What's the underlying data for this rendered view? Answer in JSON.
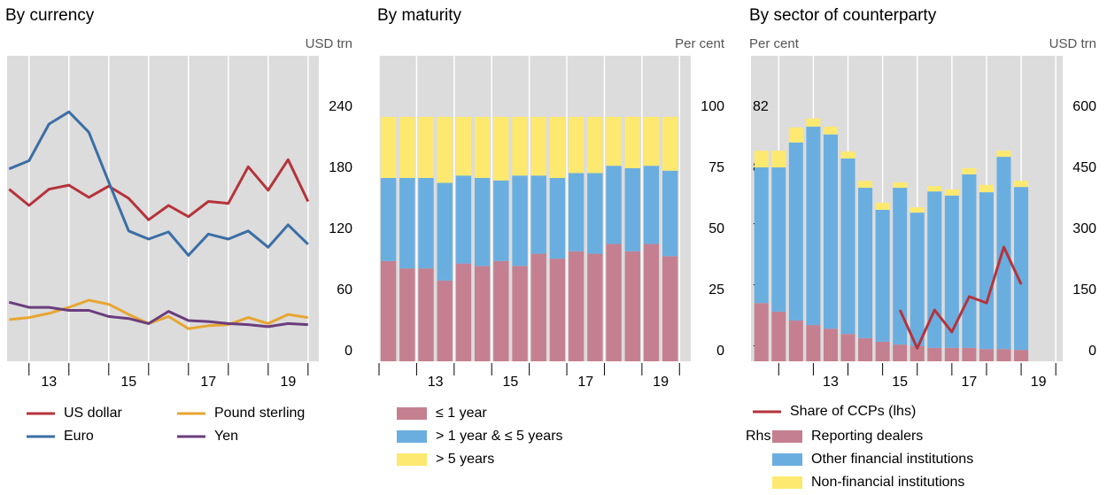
{
  "chart_data": [
    {
      "type": "line",
      "title": "By currency",
      "y_label": "USD trn",
      "yaxis_side": "right",
      "x": [
        2012.5,
        2013.0,
        2013.5,
        2014.0,
        2014.5,
        2015.0,
        2015.5,
        2016.0,
        2016.5,
        2017.0,
        2017.5,
        2018.0,
        2018.5,
        2019.0,
        2019.5,
        2020.0
      ],
      "xlim": [
        2012.45,
        2020.27
      ],
      "xticks": [
        2013,
        2014,
        2015,
        2016,
        2017,
        2018,
        2019,
        2020
      ],
      "xlabels": [
        {
          "value": 2013.5,
          "label": "13"
        },
        {
          "value": 2015.5,
          "label": "15"
        },
        {
          "value": 2017.5,
          "label": "17"
        },
        {
          "value": 2019.5,
          "label": "19"
        }
      ],
      "ylim": [
        0,
        300
      ],
      "yticks": [
        0,
        60,
        120,
        180,
        240
      ],
      "series": [
        {
          "name": "US dollar",
          "color": "#b5333b",
          "values": [
            169,
            153,
            169,
            173,
            161,
            172,
            160,
            139,
            153,
            142,
            157,
            155,
            191,
            168,
            198,
            157
          ]
        },
        {
          "name": "Euro",
          "color": "#3b6ea5",
          "values": [
            189,
            197,
            233,
            245,
            225,
            176,
            128,
            120,
            127,
            104,
            125,
            120,
            128,
            112,
            134,
            115
          ]
        },
        {
          "name": "Pound sterling",
          "color": "#e8a531",
          "values": [
            41,
            43,
            47,
            53,
            60,
            56,
            46,
            37,
            44,
            32,
            35,
            36,
            43,
            37,
            46,
            43
          ]
        },
        {
          "name": "Yen",
          "color": "#6a3d7e",
          "values": [
            58,
            53,
            53,
            50,
            50,
            44,
            42,
            37,
            49,
            40,
            39,
            37,
            36,
            34,
            37,
            36
          ]
        }
      ]
    },
    {
      "type": "bar",
      "stacked": true,
      "title": "By maturity",
      "y_label": "Per cent",
      "yaxis_side": "right",
      "x": [
        2012.25,
        2012.75,
        2013.25,
        2013.75,
        2014.25,
        2014.75,
        2015.25,
        2015.75,
        2016.25,
        2016.75,
        2017.25,
        2017.75,
        2018.25,
        2018.75,
        2019.25,
        2019.75
      ],
      "xlim": [
        2012.0,
        2020.3
      ],
      "xticks": [
        2012,
        2013,
        2014,
        2015,
        2016,
        2017,
        2018,
        2019,
        2020
      ],
      "xlabels": [
        {
          "value": 2013.5,
          "label": "13"
        },
        {
          "value": 2015.5,
          "label": "15"
        },
        {
          "value": 2017.5,
          "label": "17"
        },
        {
          "value": 2019.5,
          "label": "19"
        }
      ],
      "ylim": [
        0,
        125
      ],
      "yticks": [
        0,
        25,
        50,
        75,
        100
      ],
      "series": [
        {
          "name": "≤ 1 year",
          "color": "#c48090",
          "values": [
            41,
            38,
            38,
            33,
            40,
            39,
            41,
            39,
            44,
            42,
            45,
            44,
            48,
            45,
            48,
            43
          ]
        },
        {
          "name": "> 1 year & ≤ 5 years",
          "color": "#6aaee0",
          "values": [
            34,
            37,
            37,
            40,
            36,
            36,
            33,
            37,
            32,
            33,
            32,
            33,
            32,
            34,
            32,
            35
          ]
        },
        {
          "name": "> 5 years",
          "color": "#fde96f",
          "values": [
            25,
            25,
            25,
            27,
            24,
            25,
            26,
            24,
            24,
            25,
            23,
            23,
            20,
            21,
            20,
            22
          ]
        }
      ]
    },
    {
      "type": "bar",
      "stacked": true,
      "title": "By sector of counterparty",
      "y_label": "Per cent",
      "y2_label": "USD trn",
      "legend_title": "Rhs:",
      "x": [
        2011.5,
        2012.0,
        2012.5,
        2013.0,
        2013.5,
        2014.0,
        2014.5,
        2015.0,
        2015.5,
        2016.0,
        2016.5,
        2017.0,
        2017.5,
        2018.0,
        2018.5,
        2019.0
      ],
      "xlim": [
        2011.2,
        2020.2
      ],
      "xticks": [
        2012,
        2013,
        2014,
        2015,
        2016,
        2017,
        2018,
        2019,
        2020
      ],
      "xlabels": [
        {
          "value": 2013.5,
          "label": "13"
        },
        {
          "value": 2015.5,
          "label": "15"
        },
        {
          "value": 2017.5,
          "label": "17"
        },
        {
          "value": 2019.5,
          "label": "19"
        }
      ],
      "ylim": [
        74,
        84
      ],
      "yticks": [
        74,
        76,
        78,
        80,
        82
      ],
      "y2lim": [
        0,
        750
      ],
      "y2ticks": [
        0,
        150,
        300,
        450,
        600
      ],
      "series": [
        {
          "name": "Share of CCPs (lhs)",
          "type": "line",
          "color": "#b5333b",
          "x": [
            2015.5,
            2016.0,
            2016.5,
            2017.0,
            2017.5,
            2018.0,
            2018.5,
            2019.0
          ],
          "values": [
            75.68,
            74.43,
            75.68,
            74.96,
            76.12,
            75.91,
            77.74,
            76.52
          ]
        },
        {
          "name": "Reporting dealers",
          "color": "#c48090",
          "axis": "y2",
          "values": [
            143,
            122,
            100,
            89,
            80,
            67,
            57,
            48,
            41,
            37,
            33,
            33,
            33,
            30,
            30,
            28
          ]
        },
        {
          "name": "Other financial institutions",
          "color": "#6aaee0",
          "axis": "y2",
          "values": [
            333,
            354,
            437,
            487,
            477,
            431,
            369,
            324,
            385,
            328,
            384,
            374,
            426,
            385,
            472,
            400
          ]
        },
        {
          "name": "Non-financial institutions",
          "color": "#fde96f",
          "axis": "y2",
          "values": [
            41,
            41,
            37,
            20,
            19,
            17,
            17,
            17,
            13,
            13,
            13,
            15,
            15,
            18,
            15,
            15
          ]
        }
      ]
    }
  ]
}
